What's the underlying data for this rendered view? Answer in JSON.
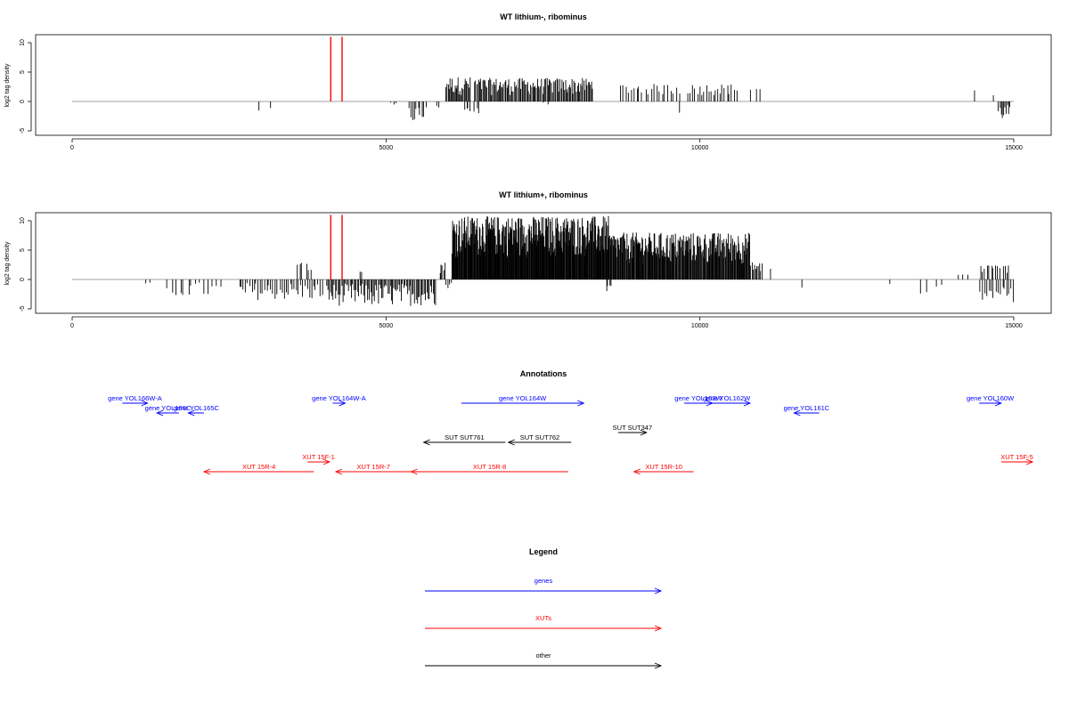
{
  "colors": {
    "gene": "#0000ff",
    "xut": "#ff0000",
    "other": "#000000",
    "baseline": "#a0a0a0",
    "bars": "#000000",
    "marker": "#ff0000"
  },
  "chart_data": [
    {
      "type": "bar",
      "title": "WT lithium-, ribominus",
      "ylabel": "log2 tag density",
      "xlim": [
        0,
        15000
      ],
      "ylim": [
        -5,
        11
      ],
      "x_ticks": [
        0,
        5000,
        10000,
        15000
      ],
      "y_ticks": [
        -5,
        0,
        5,
        10
      ],
      "markers": [
        4120,
        4300
      ],
      "profile": [
        {
          "x": [
            2950,
            3000
          ],
          "ylo": -3.5,
          "yhi": 0,
          "d": 1
        },
        {
          "x": [
            3150,
            3170
          ],
          "ylo": -1.5,
          "yhi": 0,
          "d": 1
        },
        {
          "x": [
            5050,
            5200
          ],
          "ylo": -1.2,
          "yhi": 0,
          "d": 3
        },
        {
          "x": [
            5350,
            5650
          ],
          "ylo": -3.8,
          "yhi": 0,
          "d": 10
        },
        {
          "x": [
            5800,
            5850
          ],
          "ylo": -1.2,
          "yhi": 0,
          "d": 2
        },
        {
          "x": [
            5950,
            6350
          ],
          "ylo": 1.0,
          "yhi": 4.2,
          "d": 25
        },
        {
          "x": [
            6250,
            6350
          ],
          "ylo": -2.5,
          "yhi": 0,
          "d": 4
        },
        {
          "x": [
            6400,
            8300
          ],
          "ylo": 1.0,
          "yhi": 4.0,
          "d": 110
        },
        {
          "x": [
            6400,
            6500
          ],
          "ylo": -2.0,
          "yhi": 0,
          "d": 3
        },
        {
          "x": [
            7500,
            7600
          ],
          "ylo": -1.0,
          "yhi": 0,
          "d": 2
        },
        {
          "x": [
            8700,
            9700
          ],
          "ylo": 1.0,
          "yhi": 3.0,
          "d": 22
        },
        {
          "x": [
            9650,
            9700
          ],
          "ylo": -2.5,
          "yhi": 0,
          "d": 1
        },
        {
          "x": [
            9800,
            10600
          ],
          "ylo": 1.0,
          "yhi": 3.0,
          "d": 22
        },
        {
          "x": [
            10800,
            11000
          ],
          "ylo": 1.5,
          "yhi": 2.5,
          "d": 3
        },
        {
          "x": [
            14350,
            14400
          ],
          "ylo": 1.5,
          "yhi": 2.0,
          "d": 1
        },
        {
          "x": [
            14650,
            14700
          ],
          "ylo": 0.8,
          "yhi": 1.2,
          "d": 1
        },
        {
          "x": [
            14750,
            14950
          ],
          "ylo": -3.2,
          "yhi": 0,
          "d": 10
        }
      ]
    },
    {
      "type": "bar",
      "title": "WT lithium+, ribominus",
      "ylabel": "log2 tag density",
      "xlim": [
        0,
        15000
      ],
      "ylim": [
        -5,
        11
      ],
      "x_ticks": [
        0,
        5000,
        10000,
        15000
      ],
      "y_ticks": [
        -5,
        0,
        5,
        10
      ],
      "markers": [
        4120,
        4300
      ],
      "profile": [
        {
          "x": [
            1150,
            1250
          ],
          "ylo": -3.0,
          "yhi": 0,
          "d": 2
        },
        {
          "x": [
            1500,
            2400
          ],
          "ylo": -3.0,
          "yhi": 0,
          "d": 14
        },
        {
          "x": [
            2650,
            4000
          ],
          "ylo": -3.5,
          "yhi": 0,
          "d": 40
        },
        {
          "x": [
            3550,
            3850
          ],
          "ylo": 1.0,
          "yhi": 3.0,
          "d": 6
        },
        {
          "x": [
            4050,
            5800
          ],
          "ylo": -4.5,
          "yhi": 0,
          "d": 90
        },
        {
          "x": [
            4550,
            4650
          ],
          "ylo": 1.0,
          "yhi": 3.0,
          "d": 2
        },
        {
          "x": [
            5850,
            5950
          ],
          "ylo": 1.0,
          "yhi": 3.0,
          "d": 5
        },
        {
          "x": [
            5950,
            6050
          ],
          "ylo": -1.5,
          "yhi": 0,
          "d": 4
        },
        {
          "x": [
            6050,
            8550
          ],
          "ylo": 3.5,
          "yhi": 10.8,
          "d": 300
        },
        {
          "x": [
            8550,
            10800
          ],
          "ylo": 2.5,
          "yhi": 8.0,
          "d": 220
        },
        {
          "x": [
            8500,
            8600
          ],
          "ylo": -2.0,
          "yhi": 0,
          "d": 4
        },
        {
          "x": [
            10800,
            11000
          ],
          "ylo": 1.0,
          "yhi": 3.0,
          "d": 10
        },
        {
          "x": [
            11100,
            11150
          ],
          "ylo": 1.5,
          "yhi": 2.0,
          "d": 1
        },
        {
          "x": [
            11600,
            11650
          ],
          "ylo": -2.5,
          "yhi": 0,
          "d": 1
        },
        {
          "x": [
            13000,
            13050
          ],
          "ylo": -1.5,
          "yhi": 0,
          "d": 1
        },
        {
          "x": [
            13500,
            13900
          ],
          "ylo": -3.0,
          "yhi": 0,
          "d": 4
        },
        {
          "x": [
            14050,
            14350
          ],
          "ylo": 0.5,
          "yhi": 1.0,
          "d": 3
        },
        {
          "x": [
            14450,
            14950
          ],
          "ylo": 1.0,
          "yhi": 2.5,
          "d": 14
        },
        {
          "x": [
            14450,
            14950
          ],
          "ylo": -3.5,
          "yhi": 0,
          "d": 14
        },
        {
          "x": [
            14950,
            15000
          ],
          "ylo": -5.0,
          "yhi": 0,
          "d": 2
        }
      ]
    },
    {
      "type": "annotation-track",
      "title": "Annotations",
      "xlim": [
        0,
        15000
      ],
      "features": [
        {
          "label": "gene YOL166W-A",
          "kind": "gene",
          "start": 800,
          "end": 1200,
          "strand": "+",
          "row": 0
        },
        {
          "label": "gene YOL166C",
          "kind": "gene",
          "start": 1350,
          "end": 1700,
          "strand": "-",
          "row": 1
        },
        {
          "label": "gene YOL165C",
          "kind": "gene",
          "start": 1850,
          "end": 2100,
          "strand": "-",
          "row": 1
        },
        {
          "label": "gene YOL164W-A",
          "kind": "gene",
          "start": 4150,
          "end": 4350,
          "strand": "+",
          "row": 0
        },
        {
          "label": "gene YOL164W",
          "kind": "gene",
          "start": 6200,
          "end": 8150,
          "strand": "+",
          "row": 0
        },
        {
          "label": "gene YOL163W",
          "kind": "gene",
          "start": 9750,
          "end": 10200,
          "strand": "+",
          "row": 0
        },
        {
          "label": "gene YOL162W",
          "kind": "gene",
          "start": 10050,
          "end": 10800,
          "strand": "+",
          "row": 0
        },
        {
          "label": "gene YOL161C",
          "kind": "gene",
          "start": 11500,
          "end": 11900,
          "strand": "-",
          "row": 1
        },
        {
          "label": "gene YOL160W",
          "kind": "gene",
          "start": 14450,
          "end": 14800,
          "strand": "+",
          "row": 0
        },
        {
          "label": "SUT SUT761",
          "kind": "other",
          "start": 5600,
          "end": 6900,
          "strand": "-",
          "row": 4
        },
        {
          "label": "SUT SUT762",
          "kind": "other",
          "start": 6950,
          "end": 7950,
          "strand": "-",
          "row": 4
        },
        {
          "label": "SUT SUT347",
          "kind": "other",
          "start": 8700,
          "end": 9150,
          "strand": "+",
          "row": 3
        },
        {
          "label": "XUT 15F-1",
          "kind": "xut",
          "start": 3750,
          "end": 4100,
          "strand": "+",
          "row": 6
        },
        {
          "label": "XUT 15R-4",
          "kind": "xut",
          "start": 2100,
          "end": 3850,
          "strand": "-",
          "row": 7
        },
        {
          "label": "XUT 15R-7",
          "kind": "xut",
          "start": 4200,
          "end": 5400,
          "strand": "-",
          "row": 7
        },
        {
          "label": "XUT 15R-8",
          "kind": "xut",
          "start": 5400,
          "end": 7900,
          "strand": "-",
          "row": 7
        },
        {
          "label": "XUT 15R-10",
          "kind": "xut",
          "start": 8950,
          "end": 9900,
          "strand": "-",
          "row": 7
        },
        {
          "label": "XUT 15F-5",
          "kind": "xut",
          "start": 14800,
          "end": 15300,
          "strand": "+",
          "row": 6
        }
      ]
    }
  ],
  "legend": {
    "title": "Legend",
    "items": [
      {
        "label": "genes",
        "kind": "gene"
      },
      {
        "label": "XUTs",
        "kind": "xut"
      },
      {
        "label": "other",
        "kind": "other"
      }
    ]
  }
}
